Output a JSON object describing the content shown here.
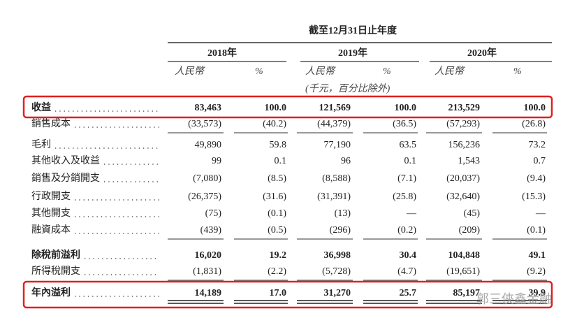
{
  "header": {
    "period": "截至12月31日止年度",
    "years": [
      "2018年",
      "2019年",
      "2020年"
    ],
    "currency": "人民幣",
    "percent": "%",
    "unit_note": "(千元，百分比除外)"
  },
  "table": {
    "rows": [
      {
        "label": "收益",
        "values": [
          "83,463",
          "100.0",
          "121,569",
          "100.0",
          "213,529",
          "100.0"
        ]
      },
      {
        "label": "銷售成本",
        "values": [
          "(33,573)",
          "(40.2)",
          "(44,379)",
          "(36.5)",
          "(57,293)",
          "(26.8)"
        ]
      },
      {
        "label": "毛利",
        "values": [
          "49,890",
          "59.8",
          "77,190",
          "63.5",
          "156,236",
          "73.2"
        ]
      },
      {
        "label": "其他收入及收益",
        "values": [
          "99",
          "0.1",
          "96",
          "0.1",
          "1,543",
          "0.7"
        ]
      },
      {
        "label": "銷售及分銷開支",
        "values": [
          "(7,080)",
          "(8.5)",
          "(8,588)",
          "(7.1)",
          "(20,037)",
          "(9.4)"
        ]
      },
      {
        "label": "行政開支",
        "values": [
          "(26,375)",
          "(31.6)",
          "(31,391)",
          "(25.8)",
          "(32,640)",
          "(15.3)"
        ]
      },
      {
        "label": "其他開支",
        "values": [
          "(75)",
          "(0.1)",
          "(13)",
          "—",
          "(45)",
          "—"
        ]
      },
      {
        "label": "融資成本",
        "values": [
          "(439)",
          "(0.5)",
          "(296)",
          "(0.2)",
          "(209)",
          "(0.1)"
        ]
      },
      {
        "label": "除稅前溢利",
        "values": [
          "16,020",
          "19.2",
          "36,998",
          "30.4",
          "104,848",
          "49.1"
        ]
      },
      {
        "label": "所得稅開支",
        "values": [
          "(1,831)",
          "(2.2)",
          "(5,728)",
          "(4.7)",
          "(19,651)",
          "(9.2)"
        ]
      },
      {
        "label": "年內溢利",
        "values": [
          "14,189",
          "17.0",
          "31,270",
          "25.7",
          "85,197",
          "39.9"
        ]
      }
    ]
  },
  "watermark": "郭三俠鑫金融"
}
